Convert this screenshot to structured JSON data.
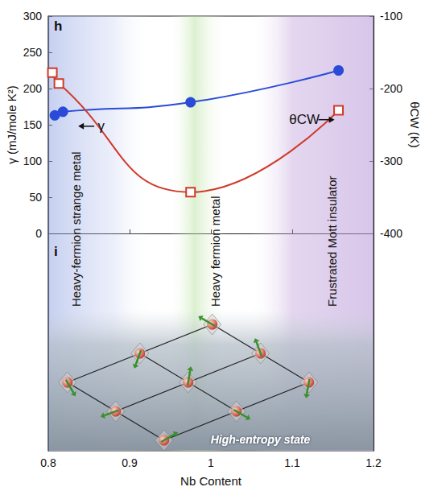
{
  "chart_data": {
    "type": "line",
    "panels": [
      "h",
      "i"
    ],
    "x_label": "Nb Content",
    "y_label": "γ (mJ/mole K²)",
    "y2_label": "θCW (K)",
    "xlim": [
      0.8,
      1.2
    ],
    "xticks": [
      0.8,
      0.9,
      1,
      1.1,
      1.2
    ],
    "ylim": [
      -300,
      300
    ],
    "yticks": [
      0,
      50,
      100,
      150,
      200,
      250,
      300
    ],
    "y2lim": [
      -700,
      -100
    ],
    "y2ticks": [
      -400,
      -300,
      -200,
      -100
    ],
    "grid": false,
    "series": [
      {
        "name": "γ",
        "color": "#2a4bd7",
        "marker": "circle",
        "line_style": "solid",
        "x": [
          0.808,
          0.818,
          0.975,
          1.157
        ],
        "values": [
          163,
          168,
          181,
          225
        ],
        "annotation": {
          "x": 0.865,
          "y": 148
        }
      },
      {
        "name": "θCW",
        "color": "#d03a2a",
        "marker": "open_square",
        "line_style": "solid",
        "axis": "y2",
        "x": [
          0.805,
          0.813,
          0.975,
          1.157
        ],
        "values": [
          -178,
          -193,
          -343,
          -230
        ],
        "annotation": {
          "x": 1.115,
          "y": -243
        }
      }
    ],
    "phase_labels": [
      {
        "text": "Heavy-fermion strange metal",
        "x": 0.834
      },
      {
        "text": "Heavy fermion metal",
        "x": 1.005
      },
      {
        "text": "Frustrated Mott insulator",
        "x": 1.149
      }
    ],
    "illustration_label": "High-entropy state"
  }
}
